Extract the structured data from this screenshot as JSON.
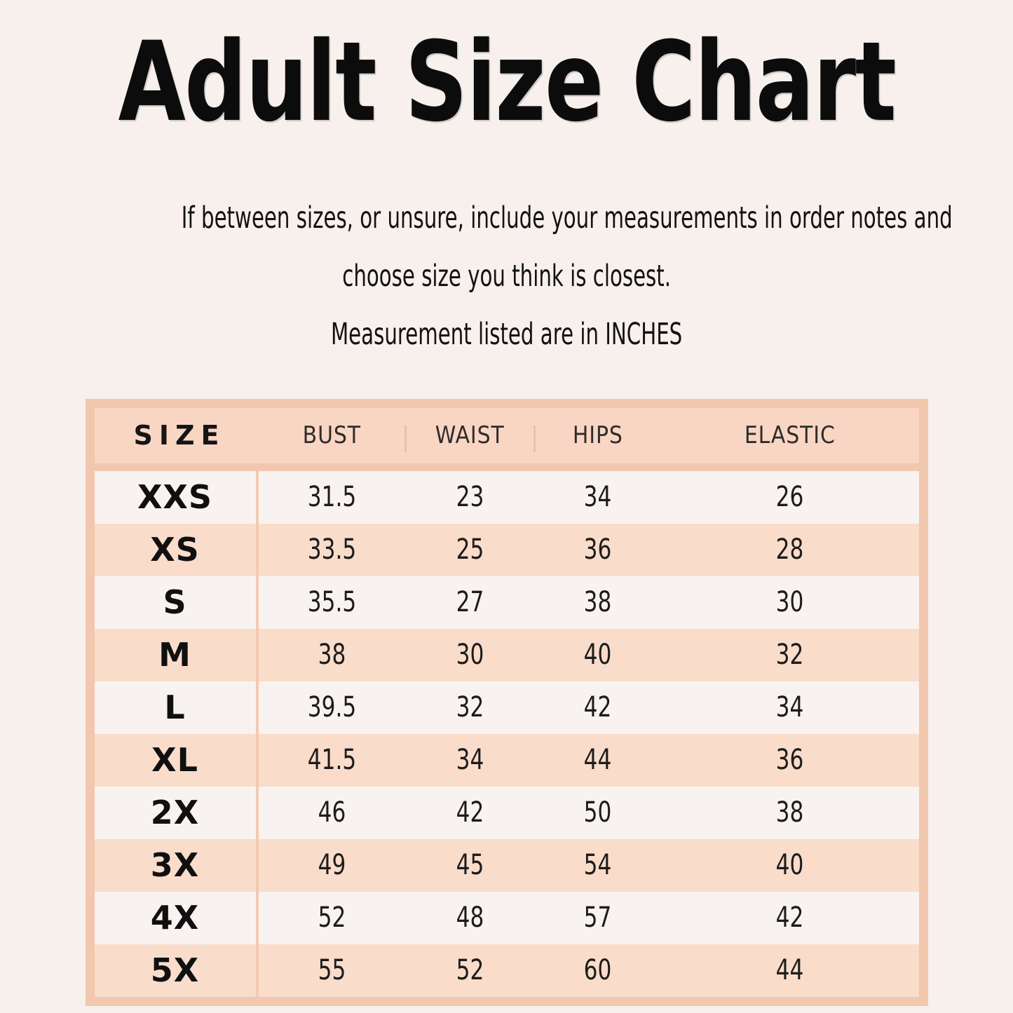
{
  "page": {
    "title": "Adult Size Chart",
    "subtitle_lines": [
      "If between sizes, or unsure, include your measurements in order notes and",
      "choose size you think is closest.",
      "Measurement listed are in INCHES"
    ]
  },
  "colors": {
    "background": "#f7f0ec",
    "table_frame": "#f1c7ae",
    "header_row_bg": "#f9d6c3",
    "row_pink": "#f9dcca",
    "row_light": "#f8f3f0",
    "text": "#141414"
  },
  "chart_data": {
    "type": "table",
    "title": "Adult Size Chart",
    "units": "INCHES",
    "columns": [
      "SIZE",
      "BUST",
      "WAIST",
      "HIPS",
      "ELASTIC"
    ],
    "rows": [
      [
        "XXS",
        "31.5",
        "23",
        "34",
        "26"
      ],
      [
        "XS",
        "33.5",
        "25",
        "36",
        "28"
      ],
      [
        "S",
        "35.5",
        "27",
        "38",
        "30"
      ],
      [
        "M",
        "38",
        "30",
        "40",
        "32"
      ],
      [
        "L",
        "39.5",
        "32",
        "42",
        "34"
      ],
      [
        "XL",
        "41.5",
        "34",
        "44",
        "36"
      ],
      [
        "2X",
        "46",
        "42",
        "50",
        "38"
      ],
      [
        "3X",
        "49",
        "45",
        "54",
        "40"
      ],
      [
        "4X",
        "52",
        "48",
        "57",
        "42"
      ],
      [
        "5X",
        "55",
        "52",
        "60",
        "44"
      ]
    ]
  }
}
